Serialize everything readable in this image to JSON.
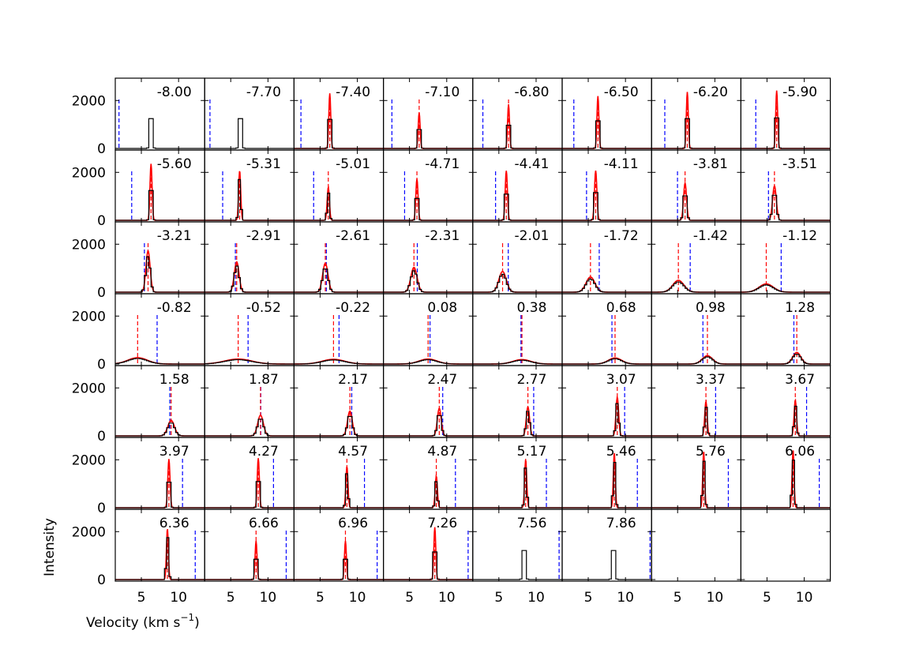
{
  "chart_data": {
    "type": "line",
    "grid": {
      "rows": 7,
      "cols": 8
    },
    "xlabel": "Velocity (km s",
    "xlabel_sup": "−1",
    "xlabel_close": ")",
    "ylabel": "Intensity",
    "xlim": [
      1.5,
      13.5
    ],
    "ylim": [
      0,
      2800
    ],
    "xticks": [
      5,
      10
    ],
    "yticks": [
      0,
      2000
    ],
    "grid_lines": false,
    "series_colors": {
      "observed": "#000000",
      "model": "#ff0000",
      "red_marker": "#ff0000",
      "blue_marker": "#0000ff"
    },
    "panels": [
      {
        "label": "-8.00",
        "center": 6.3,
        "width": 0.13,
        "peak": 2050,
        "model": false
      },
      {
        "label": "-7.70",
        "center": 6.3,
        "width": 0.13,
        "peak": 2050,
        "model": false
      },
      {
        "label": "-7.40",
        "center": 6.3,
        "width": 0.13,
        "peak": 2000,
        "model": true
      },
      {
        "label": "-7.10",
        "center": 6.3,
        "width": 0.13,
        "peak": 1300,
        "model": true
      },
      {
        "label": "-6.80",
        "center": 6.3,
        "width": 0.13,
        "peak": 1600,
        "model": true
      },
      {
        "label": "-6.50",
        "center": 6.3,
        "width": 0.13,
        "peak": 1900,
        "model": true
      },
      {
        "label": "-6.20",
        "center": 6.3,
        "width": 0.13,
        "peak": 2050,
        "model": true
      },
      {
        "label": "-5.90",
        "center": 6.3,
        "width": 0.13,
        "peak": 2100,
        "model": true
      },
      {
        "label": "-5.60",
        "center": 6.3,
        "width": 0.14,
        "peak": 2050,
        "model": true
      },
      {
        "label": "-5.31",
        "center": 6.2,
        "width": 0.14,
        "peak": 1800,
        "model": true
      },
      {
        "label": "-5.01",
        "center": 6.1,
        "width": 0.15,
        "peak": 1200,
        "model": true
      },
      {
        "label": "-4.71",
        "center": 6.0,
        "width": 0.15,
        "peak": 1500,
        "model": true
      },
      {
        "label": "-4.41",
        "center": 6.0,
        "width": 0.15,
        "peak": 1800,
        "model": true
      },
      {
        "label": "-4.11",
        "center": 6.0,
        "width": 0.16,
        "peak": 1800,
        "model": true
      },
      {
        "label": "-3.81",
        "center": 6.0,
        "width": 0.2,
        "peak": 1350,
        "model": true
      },
      {
        "label": "-3.51",
        "center": 6.0,
        "width": 0.25,
        "peak": 1250,
        "model": true
      },
      {
        "label": "-3.21",
        "center": 5.9,
        "width": 0.28,
        "peak": 1500,
        "model": true
      },
      {
        "label": "-2.91",
        "center": 5.8,
        "width": 0.32,
        "peak": 1100,
        "model": true
      },
      {
        "label": "-2.61",
        "center": 5.7,
        "width": 0.36,
        "peak": 1050,
        "model": true
      },
      {
        "label": "-2.31",
        "center": 5.6,
        "width": 0.42,
        "peak": 900,
        "model": true
      },
      {
        "label": "-2.01",
        "center": 5.5,
        "width": 0.5,
        "peak": 750,
        "model": true
      },
      {
        "label": "-1.72",
        "center": 5.3,
        "width": 0.6,
        "peak": 550,
        "model": true
      },
      {
        "label": "-1.42",
        "center": 5.1,
        "width": 0.75,
        "peak": 430,
        "model": true
      },
      {
        "label": "-1.12",
        "center": 4.9,
        "width": 0.95,
        "peak": 300,
        "model": true
      },
      {
        "label": "-0.82",
        "center": 4.5,
        "width": 1.3,
        "peak": 230,
        "model": true
      },
      {
        "label": "-0.52",
        "center": 6.0,
        "width": 1.8,
        "peak": 180,
        "model": true
      },
      {
        "label": "-0.22",
        "center": 6.8,
        "width": 1.5,
        "peak": 170,
        "model": true
      },
      {
        "label": "0.08",
        "center": 7.5,
        "width": 1.2,
        "peak": 180,
        "model": true
      },
      {
        "label": "0.38",
        "center": 8.1,
        "width": 1.2,
        "peak": 160,
        "model": true
      },
      {
        "label": "0.68",
        "center": 8.6,
        "width": 0.9,
        "peak": 220,
        "model": true
      },
      {
        "label": "0.98",
        "center": 9.0,
        "width": 0.7,
        "peak": 300,
        "model": true
      },
      {
        "label": "1.28",
        "center": 9.0,
        "width": 0.55,
        "peak": 420,
        "model": true
      },
      {
        "label": "1.58",
        "center": 9.0,
        "width": 0.45,
        "peak": 560,
        "model": true
      },
      {
        "label": "1.87",
        "center": 9.0,
        "width": 0.38,
        "peak": 750,
        "model": true
      },
      {
        "label": "2.17",
        "center": 9.0,
        "width": 0.32,
        "peak": 900,
        "model": true
      },
      {
        "label": "2.47",
        "center": 9.0,
        "width": 0.26,
        "peak": 1000,
        "model": true
      },
      {
        "label": "2.77",
        "center": 8.9,
        "width": 0.22,
        "peak": 1050,
        "model": true
      },
      {
        "label": "3.07",
        "center": 8.9,
        "width": 0.18,
        "peak": 1400,
        "model": true
      },
      {
        "label": "3.37",
        "center": 8.8,
        "width": 0.16,
        "peak": 1250,
        "model": true
      },
      {
        "label": "3.67",
        "center": 8.8,
        "width": 0.16,
        "peak": 1300,
        "model": true
      },
      {
        "label": "3.97",
        "center": 8.7,
        "width": 0.15,
        "peak": 1750,
        "model": true
      },
      {
        "label": "4.27",
        "center": 8.7,
        "width": 0.14,
        "peak": 1800,
        "model": true
      },
      {
        "label": "4.57",
        "center": 8.6,
        "width": 0.14,
        "peak": 1500,
        "model": true
      },
      {
        "label": "4.87",
        "center": 8.6,
        "width": 0.15,
        "peak": 1150,
        "model": true
      },
      {
        "label": "5.17",
        "center": 8.6,
        "width": 0.14,
        "peak": 1750,
        "model": true
      },
      {
        "label": "5.46",
        "center": 8.5,
        "width": 0.13,
        "peak": 2000,
        "model": true
      },
      {
        "label": "5.76",
        "center": 8.5,
        "width": 0.13,
        "peak": 2050,
        "model": true
      },
      {
        "label": "6.06",
        "center": 8.5,
        "width": 0.13,
        "peak": 2100,
        "model": true
      },
      {
        "label": "6.36",
        "center": 8.5,
        "width": 0.13,
        "peak": 1850,
        "model": true
      },
      {
        "label": "6.66",
        "center": 8.4,
        "width": 0.13,
        "peak": 1400,
        "model": true
      },
      {
        "label": "6.96",
        "center": 8.4,
        "width": 0.13,
        "peak": 1400,
        "model": true
      },
      {
        "label": "7.26",
        "center": 8.4,
        "width": 0.13,
        "peak": 1900,
        "model": true
      },
      {
        "label": "7.56",
        "center": 8.4,
        "width": 0.13,
        "peak": 2000,
        "model": false
      },
      {
        "label": "7.86",
        "center": 8.4,
        "width": 0.13,
        "peak": 2000,
        "model": false
      }
    ]
  }
}
